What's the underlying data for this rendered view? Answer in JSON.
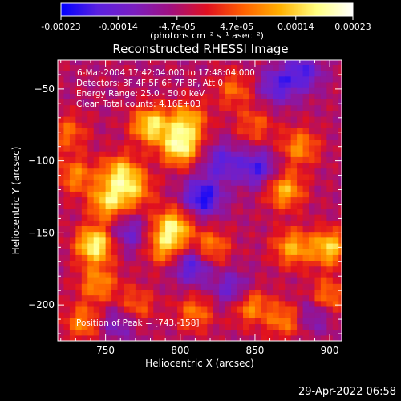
{
  "colorbar": {
    "tick_labels": [
      "-0.00023",
      "-0.00014",
      "-4.7e-05",
      "4.7e-05",
      "0.00014",
      "0.00023"
    ],
    "tick_values": [
      -0.00023,
      -0.00014,
      -4.7e-05,
      4.7e-05,
      0.00014,
      0.00023
    ],
    "range": [
      -0.00023,
      0.00023
    ],
    "units": "(photons cm⁻² s⁻¹ asec⁻²)",
    "colors": [
      "#0000ff",
      "#5a20e0",
      "#7a1ec0",
      "#a01080",
      "#e01020",
      "#ff6000",
      "#ffb000",
      "#ffff80",
      "#ffffff"
    ]
  },
  "chart_data": {
    "type": "heatmap",
    "title": "Reconstructed RHESSI Image",
    "xlabel": "Heliocentric X (arcsec)",
    "ylabel": "Heliocentric Y (arcsec)",
    "xlim": [
      718,
      908
    ],
    "ylim": [
      -225,
      -30
    ],
    "x_ticks": [
      750,
      800,
      850,
      900
    ],
    "x_tick_labels": [
      "750",
      "800",
      "850",
      "900"
    ],
    "y_ticks": [
      -50,
      -100,
      -150,
      -200
    ],
    "y_tick_labels": [
      "−50",
      "−100",
      "−150",
      "−200"
    ],
    "grid": false,
    "annotations": [
      "6-Mar-2004 17:42:04.000 to 17:48:04.000",
      "Detectors: 3F 4F 5F 6F 7F 8F, Att 0",
      "Energy Range: 25.0 - 50.0 keV",
      "Clean    Total counts: 4.16E+03"
    ],
    "peak_label": "Position of Peak = [743,-158]",
    "peak": [
      743,
      -158
    ],
    "hotspots": [
      {
        "x": 743,
        "y": -158,
        "value": 0.00023
      },
      {
        "x": 752,
        "y": -128,
        "value": 0.00018
      },
      {
        "x": 780,
        "y": -75,
        "value": 0.0002
      },
      {
        "x": 800,
        "y": -90,
        "value": 0.00022
      },
      {
        "x": 805,
        "y": -72,
        "value": 0.00016
      },
      {
        "x": 770,
        "y": -120,
        "value": 0.00012
      },
      {
        "x": 760,
        "y": -108,
        "value": 0.00017
      },
      {
        "x": 795,
        "y": -145,
        "value": 0.00019
      },
      {
        "x": 790,
        "y": -160,
        "value": 0.00014
      },
      {
        "x": 730,
        "y": -110,
        "value": 0.00012
      },
      {
        "x": 725,
        "y": -80,
        "value": 0.0001
      },
      {
        "x": 820,
        "y": -160,
        "value": 0.00013
      },
      {
        "x": 836,
        "y": -50,
        "value": 0.0001
      },
      {
        "x": 846,
        "y": -200,
        "value": 0.00014
      },
      {
        "x": 870,
        "y": -120,
        "value": 0.00016
      },
      {
        "x": 875,
        "y": -160,
        "value": 0.00015
      },
      {
        "x": 900,
        "y": -160,
        "value": 0.00018
      },
      {
        "x": 898,
        "y": -195,
        "value": 0.00014
      },
      {
        "x": 870,
        "y": -210,
        "value": 0.00012
      },
      {
        "x": 810,
        "y": -205,
        "value": 0.00011
      },
      {
        "x": 745,
        "y": -185,
        "value": 0.00013
      },
      {
        "x": 735,
        "y": -212,
        "value": 0.00012
      },
      {
        "x": 770,
        "y": -200,
        "value": 0.0001
      },
      {
        "x": 880,
        "y": -90,
        "value": 0.00013
      },
      {
        "x": 850,
        "y": -75,
        "value": 9e-05
      }
    ],
    "coldspots": [
      {
        "x": 815,
        "y": -125,
        "value": -0.00018
      },
      {
        "x": 808,
        "y": -172,
        "value": -0.00015
      },
      {
        "x": 852,
        "y": -105,
        "value": -0.00014
      },
      {
        "x": 865,
        "y": -48,
        "value": -0.00012
      },
      {
        "x": 882,
        "y": -38,
        "value": -0.00013
      },
      {
        "x": 828,
        "y": -100,
        "value": -0.00012
      },
      {
        "x": 765,
        "y": -150,
        "value": -0.0001
      },
      {
        "x": 890,
        "y": -205,
        "value": -0.00011
      },
      {
        "x": 835,
        "y": -190,
        "value": -0.00012
      },
      {
        "x": 758,
        "y": -212,
        "value": -9e-05
      }
    ]
  },
  "footer": {
    "timestamp": "29-Apr-2022 06:58"
  }
}
